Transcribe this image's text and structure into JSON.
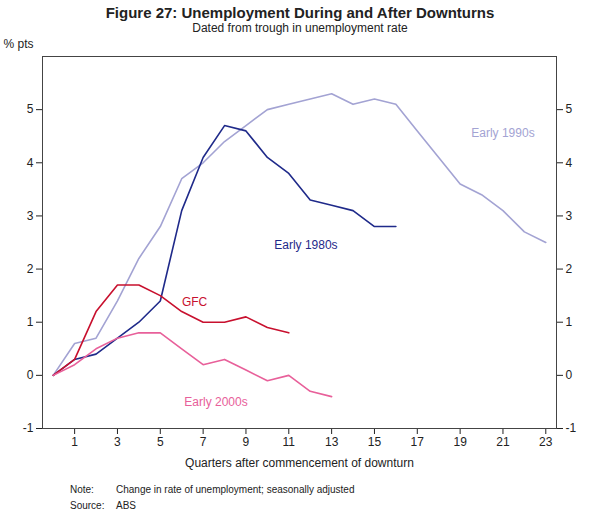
{
  "chart_data": {
    "type": "line",
    "title": "Figure 27: Unemployment During and After Downturns",
    "subtitle": "Dated from trough in unemployment rate",
    "xlabel": "Quarters after commencement of downturn",
    "ylabel": "% pts",
    "x": [
      0,
      1,
      2,
      3,
      4,
      5,
      6,
      7,
      8,
      9,
      10,
      11,
      12,
      13,
      14,
      15,
      16,
      17,
      18,
      19,
      20,
      21,
      22,
      23
    ],
    "series": [
      {
        "name": "Early 1990s",
        "color": "#a3a3d3",
        "values": [
          0,
          0.6,
          0.7,
          1.4,
          2.2,
          2.8,
          3.7,
          4.0,
          4.4,
          4.7,
          5.0,
          5.1,
          5.2,
          5.3,
          5.1,
          5.2,
          5.1,
          4.6,
          4.1,
          3.6,
          3.4,
          3.1,
          2.7,
          2.5
        ]
      },
      {
        "name": "Early 1980s",
        "color": "#1f2a8a",
        "values": [
          0,
          0.3,
          0.4,
          0.7,
          1.0,
          1.4,
          3.1,
          4.1,
          4.7,
          4.6,
          4.1,
          3.8,
          3.3,
          3.2,
          3.1,
          2.8,
          2.8,
          null,
          null,
          null,
          null,
          null,
          null,
          null
        ]
      },
      {
        "name": "GFC",
        "color": "#c8102e",
        "values": [
          0,
          0.3,
          1.2,
          1.7,
          1.7,
          1.5,
          1.2,
          1.0,
          1.0,
          1.1,
          0.9,
          0.8,
          null,
          null,
          null,
          null,
          null,
          null,
          null,
          null,
          null,
          null,
          null,
          null
        ]
      },
      {
        "name": "Early 2000s",
        "color": "#e8609a",
        "values": [
          0,
          0.2,
          0.5,
          0.7,
          0.8,
          0.8,
          0.5,
          0.2,
          0.3,
          0.1,
          -0.1,
          0,
          -0.3,
          -0.4,
          null,
          null,
          null,
          null,
          null,
          null,
          null,
          null,
          null,
          null
        ]
      }
    ],
    "xlim": [
      -0.5,
      23.5
    ],
    "xticks": [
      1,
      3,
      5,
      7,
      9,
      11,
      13,
      15,
      17,
      19,
      21,
      23
    ],
    "ylim": [
      -1,
      6
    ],
    "yticks": [
      -1,
      0,
      1,
      2,
      3,
      4,
      5
    ],
    "grid": false,
    "footnotes": [
      [
        "Note:",
        "Change in rate of unemployment; seasonally adjusted"
      ],
      [
        "Source:",
        "ABS"
      ]
    ]
  }
}
